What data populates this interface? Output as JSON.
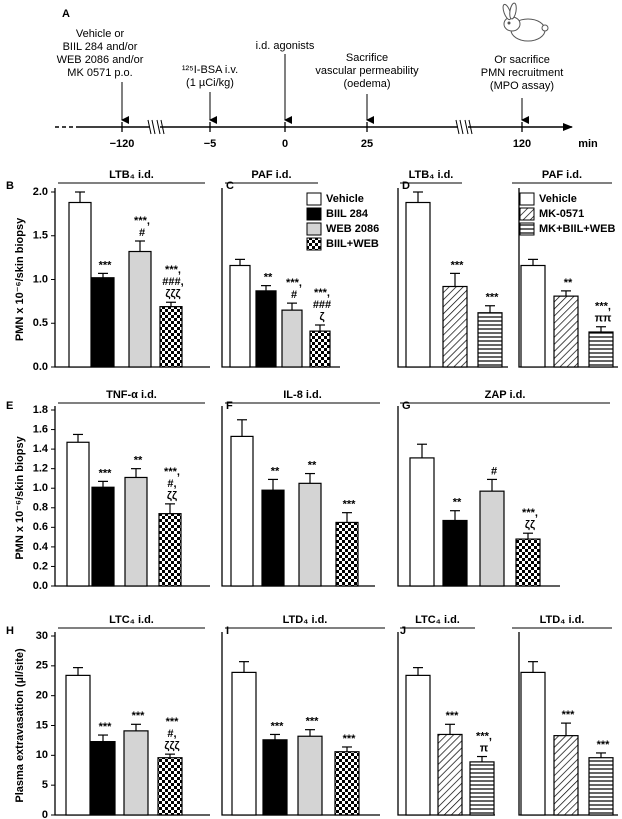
{
  "timeline": {
    "panel": "A",
    "unit": "min",
    "ticks": [
      {
        "value": -120,
        "label": "−120"
      },
      {
        "value": -5,
        "label": "−5"
      },
      0,
      25,
      120
    ],
    "events": [
      {
        "lines": [
          "Vehicle or",
          "BIIL 284 and/or",
          "WEB 2086 and/or",
          "MK 0571 p.o."
        ]
      },
      {
        "lines": [
          "¹²⁵I-BSA  i.v.",
          "(1 µCi/kg)"
        ]
      },
      {
        "lines": [
          "i.d. agonists"
        ]
      },
      {
        "lines": [
          "Sacrifice",
          "vascular permeability",
          "(oedema)"
        ]
      },
      {
        "lines": [
          "Or sacrifice",
          "PMN recruitment",
          "(MPO assay)"
        ]
      }
    ]
  },
  "chart_data": [
    {
      "type": "bar",
      "panel": "B",
      "ylabel": "PMN x 10⁻⁶/skin biopsy",
      "ylim": [
        0,
        2
      ],
      "yticks": [
        {
          "value": 0,
          "label": "0.0"
        },
        0.5,
        {
          "value": 1,
          "label": "1.0"
        },
        1.5,
        {
          "value": 2,
          "label": "2.0"
        }
      ],
      "groups": [
        {
          "title": "LTB₄ i.d.",
          "bars": [
            {
              "fill": "white",
              "value": 1.88,
              "error": 0.12,
              "annotation": null
            },
            {
              "fill": "black",
              "value": 1.02,
              "error": 0.05,
              "annotation": [
                "***"
              ]
            },
            {
              "fill": "gray",
              "value": 1.32,
              "error": 0.12,
              "annotation": [
                "***,",
                "#"
              ]
            },
            {
              "fill": "checker",
              "value": 0.69,
              "error": 0.05,
              "annotation": [
                "***,",
                "###,",
                "ζζζ"
              ]
            }
          ]
        }
      ]
    },
    {
      "type": "bar",
      "panel": "C",
      "ylim": [
        0,
        2
      ],
      "legend": [
        {
          "name": "Vehicle",
          "fill": "white"
        },
        {
          "name": "BIIL 284",
          "fill": "black"
        },
        {
          "name": "WEB 2086",
          "fill": "gray"
        },
        {
          "name": "BIIL+WEB",
          "fill": "checker"
        }
      ],
      "groups": [
        {
          "title": "PAF i.d.",
          "bars": [
            {
              "fill": "white",
              "value": 1.16,
              "error": 0.07,
              "annotation": null
            },
            {
              "fill": "black",
              "value": 0.87,
              "error": 0.06,
              "annotation": [
                "**"
              ]
            },
            {
              "fill": "gray",
              "value": 0.65,
              "error": 0.08,
              "annotation": [
                "***,",
                "#"
              ]
            },
            {
              "fill": "checker",
              "value": 0.41,
              "error": 0.07,
              "annotation": [
                "***,",
                "###",
                "ζ"
              ]
            }
          ]
        }
      ]
    },
    {
      "type": "bar",
      "panel": "D",
      "ylim": [
        0,
        2
      ],
      "legend": [
        {
          "name": "Vehicle",
          "fill": "white"
        },
        {
          "name": "MK-0571",
          "fill": "diag"
        },
        {
          "name": "MK+BIIL+WEB",
          "fill": "hstripe"
        }
      ],
      "groups": [
        {
          "title": "LTB₄ i.d.",
          "bars": [
            {
              "fill": "white",
              "value": 1.88,
              "error": 0.12,
              "annotation": null
            },
            {
              "fill": "diag",
              "value": 0.92,
              "error": 0.15,
              "annotation": [
                "***"
              ]
            },
            {
              "fill": "hstripe",
              "value": 0.62,
              "error": 0.08,
              "annotation": [
                "***"
              ]
            }
          ]
        },
        {
          "title": "PAF i.d.",
          "bars": [
            {
              "fill": "white",
              "value": 1.16,
              "error": 0.07,
              "annotation": null
            },
            {
              "fill": "diag",
              "value": 0.81,
              "error": 0.06,
              "annotation": [
                "**"
              ]
            },
            {
              "fill": "hstripe",
              "value": 0.4,
              "error": 0.06,
              "annotation": [
                "***,",
                "ππ"
              ]
            }
          ]
        }
      ]
    },
    {
      "type": "bar",
      "panel": "E",
      "ylabel": "PMN x 10⁻⁶/skin biopsy",
      "ylim": [
        0,
        1.8
      ],
      "yticks": [
        {
          "value": 0,
          "label": "0.0"
        },
        0.2,
        0.4,
        0.6,
        0.8,
        {
          "value": 1,
          "label": "1.0"
        },
        1.2,
        1.4,
        1.6,
        1.8
      ],
      "groups": [
        {
          "title": "TNF-α i.d.",
          "bars": [
            {
              "fill": "white",
              "value": 1.47,
              "error": 0.08,
              "annotation": null
            },
            {
              "fill": "black",
              "value": 1.01,
              "error": 0.06,
              "annotation": [
                "***"
              ]
            },
            {
              "fill": "gray",
              "value": 1.11,
              "error": 0.09,
              "annotation": [
                "**"
              ]
            },
            {
              "fill": "checker",
              "value": 0.74,
              "error": 0.1,
              "annotation": [
                "***,",
                "#,",
                "ζζ"
              ]
            }
          ]
        }
      ]
    },
    {
      "type": "bar",
      "panel": "F",
      "ylim": [
        0,
        1.8
      ],
      "groups": [
        {
          "title": "IL-8 i.d.",
          "bars": [
            {
              "fill": "white",
              "value": 1.53,
              "error": 0.17,
              "annotation": null
            },
            {
              "fill": "black",
              "value": 0.98,
              "error": 0.11,
              "annotation": [
                "**"
              ]
            },
            {
              "fill": "gray",
              "value": 1.05,
              "error": 0.1,
              "annotation": [
                "**"
              ]
            },
            {
              "fill": "checker",
              "value": 0.65,
              "error": 0.1,
              "annotation": [
                "***"
              ]
            }
          ]
        }
      ]
    },
    {
      "type": "bar",
      "panel": "G",
      "ylim": [
        0,
        1.8
      ],
      "groups": [
        {
          "title": "ZAP i.d.",
          "bars": [
            {
              "fill": "white",
              "value": 1.31,
              "error": 0.14,
              "annotation": null
            },
            {
              "fill": "black",
              "value": 0.67,
              "error": 0.1,
              "annotation": [
                "**"
              ]
            },
            {
              "fill": "gray",
              "value": 0.97,
              "error": 0.12,
              "annotation": [
                "#"
              ]
            },
            {
              "fill": "checker",
              "value": 0.48,
              "error": 0.06,
              "annotation": [
                "***,",
                "ζζ"
              ]
            }
          ]
        }
      ]
    },
    {
      "type": "bar",
      "panel": "H",
      "ylabel": "Plasma extravasation (µl/site)",
      "ylim": [
        0,
        30
      ],
      "yticks": [
        0,
        5,
        10,
        15,
        20,
        25,
        30
      ],
      "groups": [
        {
          "title": "LTC₄ i.d.",
          "bars": [
            {
              "fill": "white",
              "value": 23.4,
              "error": 1.3,
              "annotation": null
            },
            {
              "fill": "black",
              "value": 12.3,
              "error": 1.1,
              "annotation": [
                "***"
              ]
            },
            {
              "fill": "gray",
              "value": 14.1,
              "error": 1.1,
              "annotation": [
                "***"
              ]
            },
            {
              "fill": "checker",
              "value": 9.6,
              "error": 0.6,
              "annotation": [
                "***",
                "#,",
                "ζζζ"
              ]
            }
          ]
        }
      ]
    },
    {
      "type": "bar",
      "panel": "I",
      "ylim": [
        0,
        30
      ],
      "groups": [
        {
          "title": "LTD₄ i.d.",
          "bars": [
            {
              "fill": "white",
              "value": 23.9,
              "error": 1.8,
              "annotation": null
            },
            {
              "fill": "black",
              "value": 12.6,
              "error": 0.9,
              "annotation": [
                "***"
              ]
            },
            {
              "fill": "gray",
              "value": 13.2,
              "error": 1.1,
              "annotation": [
                "***"
              ]
            },
            {
              "fill": "checker",
              "value": 10.6,
              "error": 0.8,
              "annotation": [
                "***"
              ]
            }
          ]
        }
      ]
    },
    {
      "type": "bar",
      "panel": "J",
      "ylim": [
        0,
        30
      ],
      "groups": [
        {
          "title": "LTC₄ i.d.",
          "bars": [
            {
              "fill": "white",
              "value": 23.4,
              "error": 1.3,
              "annotation": null
            },
            {
              "fill": "diag",
              "value": 13.5,
              "error": 1.7,
              "annotation": [
                "***"
              ]
            },
            {
              "fill": "hstripe",
              "value": 8.9,
              "error": 0.9,
              "annotation": [
                "***,",
                "π"
              ]
            }
          ]
        },
        {
          "title": "LTD₄ i.d.",
          "bars": [
            {
              "fill": "white",
              "value": 23.9,
              "error": 1.8,
              "annotation": null
            },
            {
              "fill": "diag",
              "value": 13.3,
              "error": 2.1,
              "annotation": [
                "***"
              ]
            },
            {
              "fill": "hstripe",
              "value": 9.6,
              "error": 0.8,
              "annotation": [
                "***"
              ]
            }
          ]
        }
      ]
    }
  ]
}
